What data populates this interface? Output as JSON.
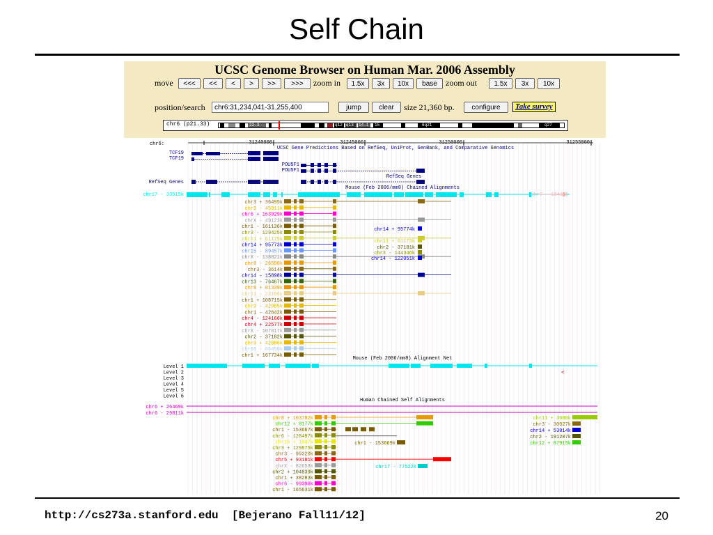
{
  "slide": {
    "title": "Self Chain",
    "footer_left": "http://cs273a.stanford.edu  [Bejerano Fall11/12]",
    "page_number": "20"
  },
  "browser": {
    "title": "UCSC Genome Browser on Human Mar. 2006 Assembly",
    "move_label": "move",
    "move_buttons": [
      "<<<",
      "<<",
      "<",
      ">",
      ">>",
      ">>>"
    ],
    "zoom_in_label": "zoom in",
    "zoom_in_buttons": [
      "1.5x",
      "3x",
      "10x",
      "base"
    ],
    "zoom_out_label": "zoom out",
    "zoom_out_buttons": [
      "1.5x",
      "3x",
      "10x"
    ],
    "position_label": "position/search",
    "position_value": "chr6:31,234,041-31,255,400",
    "jump_label": "jump",
    "clear_label": "clear",
    "size_text": "size 21,360 bp.",
    "configure_label": "configure",
    "survey_label": "Take survey",
    "ideogram_label": "chr6 (p21.33)",
    "ideogram_bands": [
      "22.3",
      "q12",
      "q13",
      "14.1",
      "15",
      "6q21",
      "q27"
    ]
  },
  "tracks": {
    "ruler_label": "chr6:",
    "ruler_ticks": [
      "31240000",
      "31245000",
      "31250000",
      "31255000"
    ],
    "gene_track_title": "UCSC Gene Predictions Based on RefSeq, UniProt, GenBank, and Comparative Genomics",
    "genes": [
      "TCF19",
      "TCF19",
      "POU5F1",
      "POU5F1"
    ],
    "refseq_title": "RefSeq Genes",
    "refseq_label": "RefSeq Genes",
    "mouse_chain_title": "Mouse (Feb 2006/mm8) Chained Alignments",
    "mouse_chain_first": "chr17 - 33515k",
    "mouse_chain_right": "chr7 - 16414k",
    "mouse_chains": [
      {
        "label": "chr3 + 36495k",
        "color": "#8b6914"
      },
      {
        "label": "chr9 - 45911k",
        "color": "#e6b800"
      },
      {
        "label": "chr6 + 163929k",
        "color": "#ff00cc"
      },
      {
        "label": "chrX - 49123k",
        "color": "#999999"
      },
      {
        "label": "chr1 - 161136k",
        "color": "#7a5c00"
      },
      {
        "label": "chr3 - 129425k",
        "color": "#8b8b00"
      },
      {
        "label": "chr11 + 61175k",
        "color": "#cccc33"
      },
      {
        "label": "chr14 + 95773k",
        "color": "#0000cc"
      },
      {
        "label": "chr15 - 89457k",
        "color": "#6699ff"
      },
      {
        "label": "chrX - 138821k",
        "color": "#888888"
      },
      {
        "label": "chr8 - 26590k",
        "color": "#e69900"
      },
      {
        "label": "chr3 - 3614k",
        "color": "#8b6914"
      },
      {
        "label": "chr14 - 15898k",
        "color": "#000099"
      },
      {
        "label": "chr13 - 76467k",
        "color": "#336600"
      },
      {
        "label": "chr8 + 81339k",
        "color": "#e69900"
      },
      {
        "label": "chr11 - 23196k",
        "color": "#e6cc80"
      },
      {
        "label": "chr1 + 108715k",
        "color": "#7a5c00"
      },
      {
        "label": "chr9 - 42985k",
        "color": "#e6b800"
      },
      {
        "label": "chr1 - 42642k",
        "color": "#7a5c00"
      },
      {
        "label": "chr4 - 124166k",
        "color": "#cc0000"
      },
      {
        "label": "chr4 + 22577k",
        "color": "#cc0000"
      },
      {
        "label": "chrX - 107017k",
        "color": "#999999"
      },
      {
        "label": "chr2 - 37182k",
        "color": "#555500"
      },
      {
        "label": "chr9 + 42885k",
        "color": "#e6b800"
      },
      {
        "label": "chr16 - 65450k",
        "color": "#aaccee"
      },
      {
        "label": "chr1 + 167734k",
        "color": "#7a5c00"
      }
    ],
    "mouse_chains_right": [
      {
        "label": "chr14 + 95774k",
        "color": "#0000cc"
      },
      {
        "label": "chr11 + 61173k",
        "color": "#cccc33"
      },
      {
        "label": "chr2 - 37181k",
        "color": "#555500"
      },
      {
        "label": "chr3 - 144346k",
        "color": "#8b8b00"
      },
      {
        "label": "chr14 - 122051k",
        "color": "#0000cc"
      }
    ],
    "net_title": "Mouse (Feb 2006/mm8) Alignment Net",
    "net_levels": [
      "Level 1",
      "Level 2",
      "Level 3",
      "Level 4",
      "Level 5",
      "Level 6"
    ],
    "self_chain_title": "Human Chained Self Alignments",
    "self_top": [
      "chr6 + 26469k",
      "chr6 - 29811k"
    ],
    "self_chains": [
      {
        "label": "chr8 + 103782k",
        "color": "#e69900"
      },
      {
        "label": "chr12 + 8177k",
        "color": "#33cc00"
      },
      {
        "label": "chr1 - 153667k",
        "color": "#7a5c00"
      },
      {
        "label": "chr6 - 128497k",
        "color": "#8b8b00"
      },
      {
        "label": "chr16 + 1047k",
        "color": "#e6e600"
      },
      {
        "label": "chr3 + 129875k",
        "color": "#8b8b00"
      },
      {
        "label": "chr3 - 99320k",
        "color": "#8b6914"
      },
      {
        "label": "chr5 + 93181k",
        "color": "#ff0000"
      },
      {
        "label": "chrX - 82658k",
        "color": "#999999"
      },
      {
        "label": "chr2 + 104839k",
        "color": "#555500"
      },
      {
        "label": "chr1 + 38283k",
        "color": "#7a5c00"
      },
      {
        "label": "chr6 - 99398k",
        "color": "#ff00cc"
      },
      {
        "label": "chr1 - 165631k",
        "color": "#7a5c00"
      }
    ],
    "self_mid": [
      {
        "label": "chr1 - 153669k",
        "color": "#7a5c00"
      },
      {
        "label": "chr17 - 77522k",
        "color": "#00cccc"
      }
    ],
    "self_right": [
      {
        "label": "chr11 + 3680k",
        "color": "#99cc00"
      },
      {
        "label": "chr3 - 30027k",
        "color": "#8b6914"
      },
      {
        "label": "chr14 + 53814k",
        "color": "#0000cc"
      },
      {
        "label": "chr2 - 191207k",
        "color": "#555500"
      },
      {
        "label": "chr12 + 87915k",
        "color": "#33cc00"
      }
    ],
    "colors": {
      "gene": "#000080",
      "refseq": "#0c0c78",
      "mouse_first": "#00e5ee",
      "self_top": "#cc00cc",
      "ruler": "#000000"
    }
  }
}
